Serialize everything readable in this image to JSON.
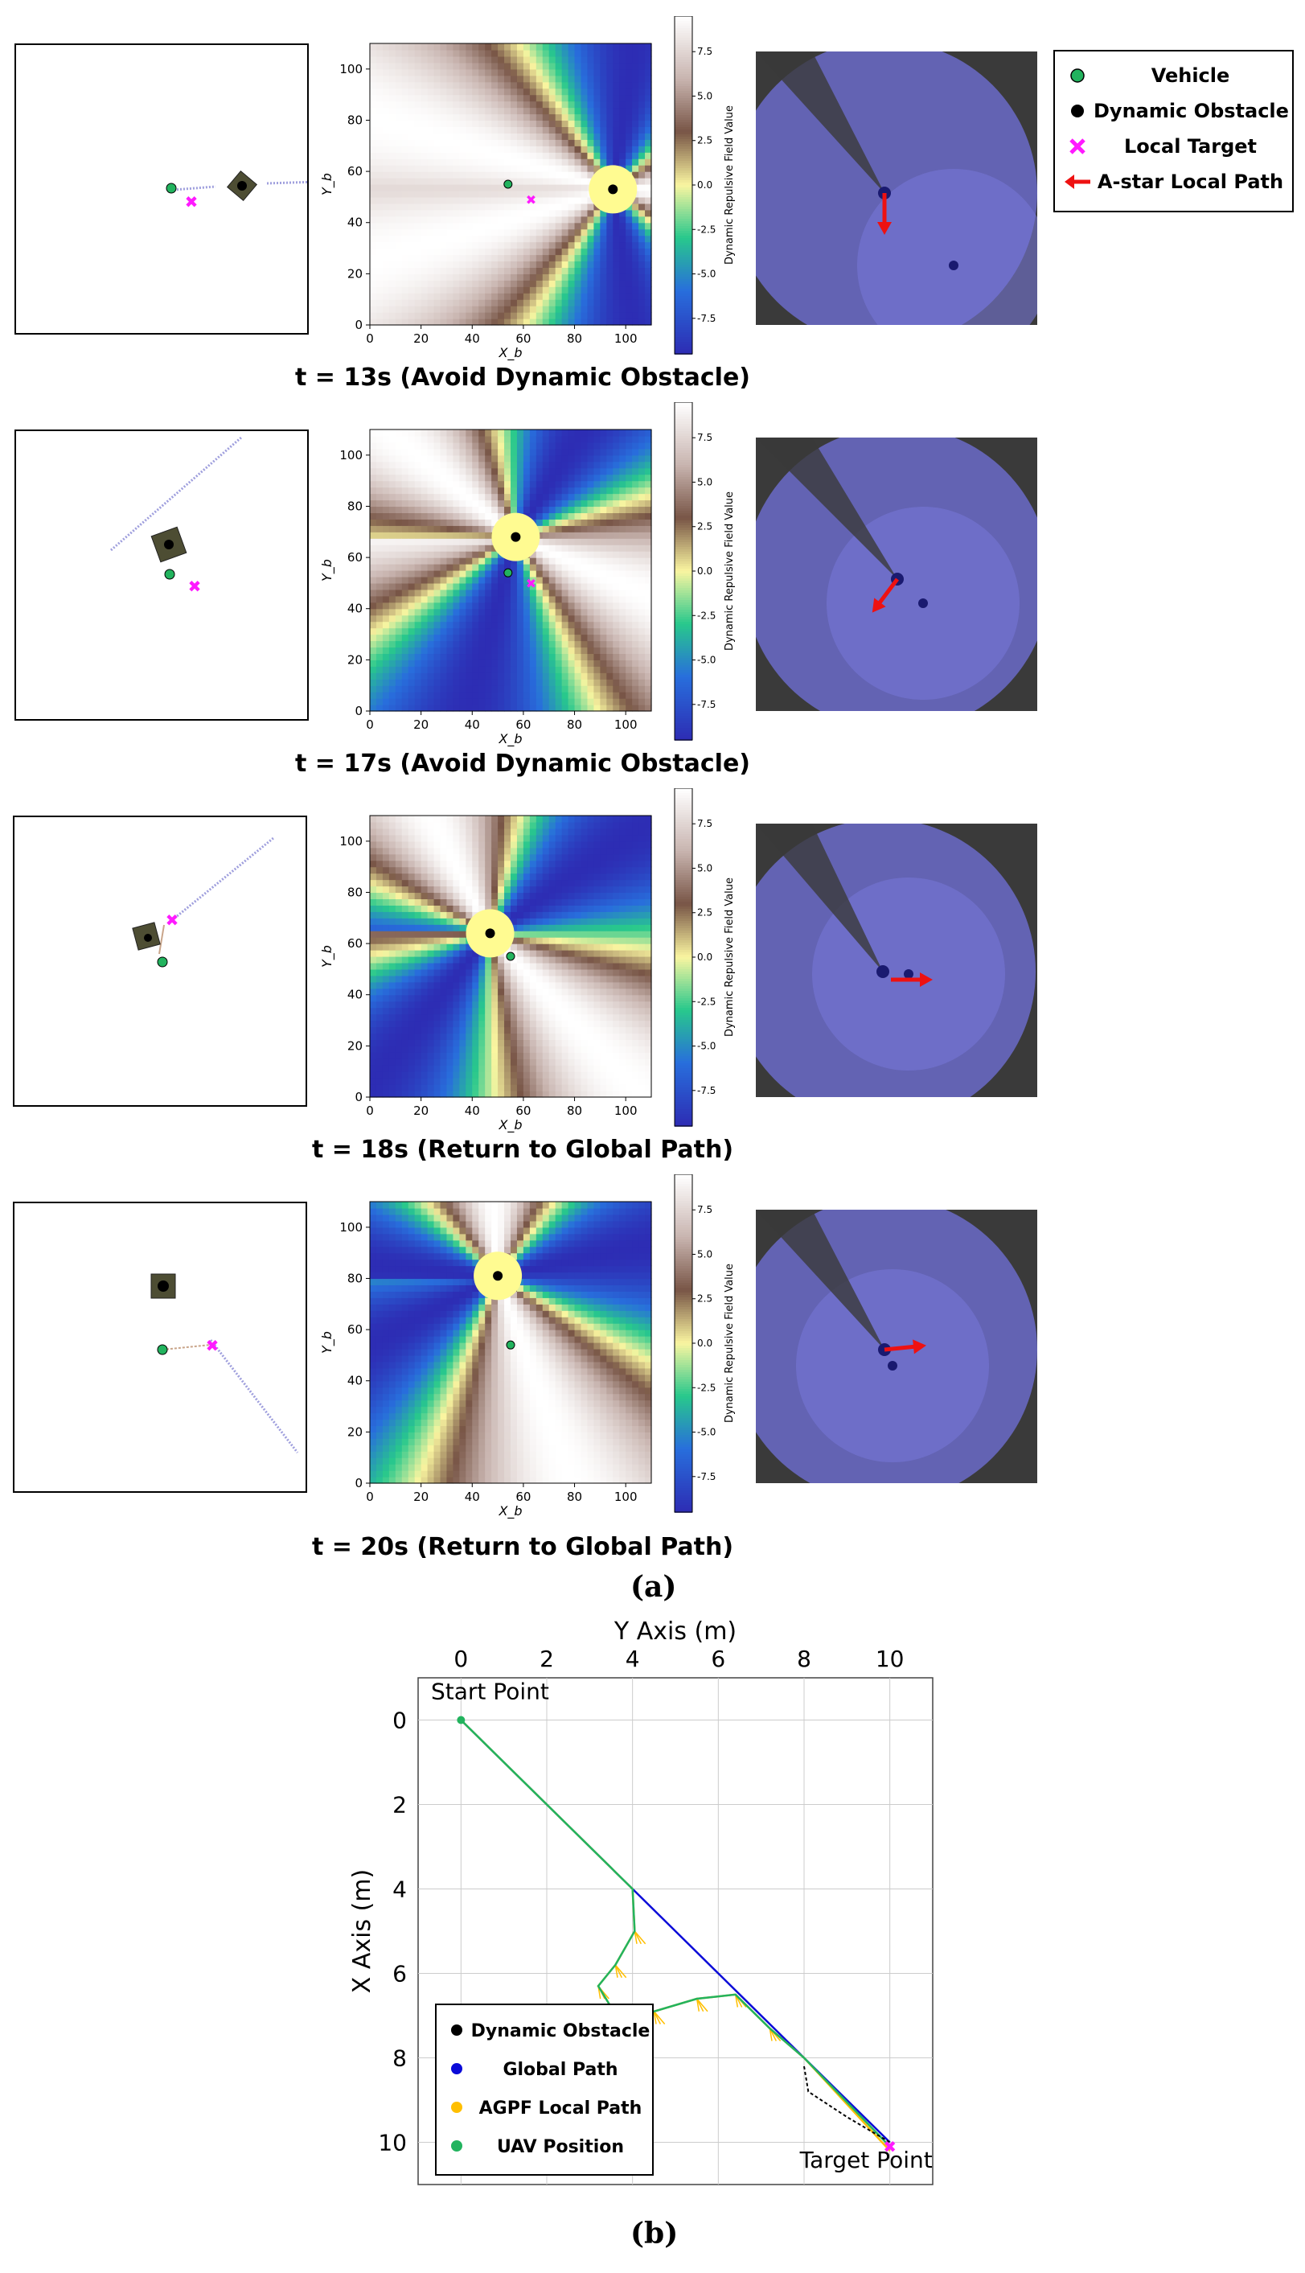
{
  "legend": {
    "items": [
      {
        "label": "Vehicle",
        "marker": "circle",
        "color": "#22b35e"
      },
      {
        "label": "Dynamic Obstacle",
        "marker": "circle",
        "color": "#000000"
      },
      {
        "label": "Local Target",
        "marker": "cross",
        "color": "#ff1aff"
      },
      {
        "label": "A-star Local Path",
        "marker": "arrow",
        "color": "#ee1111"
      }
    ]
  },
  "panels": [
    {
      "caption": "t = 13s (Avoid Dynamic Obstacle)",
      "t": 13,
      "vehicle": [
        54,
        55
      ],
      "obstacle": [
        95,
        53
      ],
      "target": [
        63,
        49
      ]
    },
    {
      "caption": "t = 17s (Avoid Dynamic Obstacle)",
      "t": 17,
      "vehicle": [
        54,
        54
      ],
      "obstacle": [
        57,
        68
      ],
      "target": [
        63,
        50
      ]
    },
    {
      "caption": "t = 18s (Return to Global Path)",
      "t": 18,
      "vehicle": [
        55,
        55
      ],
      "obstacle": [
        47,
        64
      ],
      "target": [
        55,
        55
      ]
    },
    {
      "caption": "t = 20s (Return to Global Path)",
      "t": 20,
      "vehicle": [
        55,
        54
      ],
      "obstacle": [
        50,
        81
      ],
      "target": [
        55,
        54
      ]
    }
  ],
  "heatmap_axes": {
    "x_label": "X_b",
    "y_label": "Y_b",
    "x_ticks": [
      "0",
      "20",
      "40",
      "60",
      "80",
      "100"
    ],
    "y_ticks": [
      "0",
      "20",
      "40",
      "60",
      "80",
      "100"
    ],
    "cbar_label": "Dynamic Repulsive Field Value",
    "cbar_ticks": [
      "7.5",
      "5.0",
      "2.5",
      "0.0",
      "-2.5",
      "-5.0",
      "-7.5"
    ]
  },
  "subfig_labels": {
    "a": "(a)",
    "b": "(b)"
  },
  "chart_data": [
    {
      "type": "heatmap",
      "title": "",
      "xlabel": "X_b",
      "ylabel": "Y_b",
      "xlim": [
        0,
        110
      ],
      "ylim": [
        0,
        110
      ],
      "colorbar": {
        "label": "Dynamic Repulsive Field Value",
        "range": [
          -9.5,
          9.5
        ]
      },
      "frames": [
        {
          "t": 13,
          "obstacle": [
            95,
            53
          ],
          "vehicle": [
            54,
            55
          ],
          "target": [
            63,
            49
          ]
        },
        {
          "t": 17,
          "obstacle": [
            57,
            68
          ],
          "vehicle": [
            54,
            54
          ],
          "target": [
            63,
            50
          ]
        },
        {
          "t": 18,
          "obstacle": [
            47,
            64
          ],
          "vehicle": [
            55,
            55
          ]
        },
        {
          "t": 20,
          "obstacle": [
            50,
            81
          ],
          "vehicle": [
            55,
            54
          ]
        }
      ]
    },
    {
      "type": "line",
      "xlabel": "Y Axis (m)",
      "ylabel": "X Axis (m)",
      "xlim": [
        -1,
        11
      ],
      "ylim": [
        11,
        -1
      ],
      "x_ticks": [
        "0",
        "2",
        "4",
        "6",
        "8",
        "10"
      ],
      "y_ticks": [
        "0",
        "2",
        "4",
        "6",
        "8",
        "10"
      ],
      "grid": true,
      "legend_position": "bottom-left",
      "annotations": [
        {
          "text": "Start Point",
          "at": [
            0,
            0
          ]
        },
        {
          "text": "Target Point",
          "at": [
            10,
            10
          ]
        }
      ],
      "series": [
        {
          "name": "Global Path",
          "color": "#0b0bd8",
          "points": [
            [
              0,
              0
            ],
            [
              4,
              4
            ],
            [
              8,
              8
            ],
            [
              10,
              10
            ]
          ]
        },
        {
          "name": "AGPF Local Path",
          "color": "#ffbf00",
          "points": [
            [
              0,
              0
            ],
            [
              4,
              4
            ],
            [
              4.05,
              5
            ],
            [
              3.6,
              5.8
            ],
            [
              3.2,
              6.3
            ],
            [
              3.5,
              6.8
            ],
            [
              4.5,
              6.9
            ],
            [
              5.5,
              6.6
            ],
            [
              6.4,
              6.5
            ],
            [
              7.2,
              7.3
            ],
            [
              8,
              8
            ],
            [
              10,
              10.2
            ]
          ]
        },
        {
          "name": "UAV Position",
          "color": "#22b35e",
          "points": [
            [
              0,
              0
            ],
            [
              4,
              4
            ],
            [
              4.05,
              5
            ],
            [
              3.6,
              5.8
            ],
            [
              3.2,
              6.3
            ],
            [
              3.5,
              6.8
            ],
            [
              4.5,
              6.9
            ],
            [
              5.5,
              6.6
            ],
            [
              6.4,
              6.5
            ],
            [
              7.2,
              7.3
            ],
            [
              8,
              8
            ],
            [
              10,
              10.1
            ]
          ]
        },
        {
          "name": "Dynamic Obstacle",
          "color": "#000000",
          "points": [
            [
              8,
              8.2
            ],
            [
              8.1,
              8.8
            ],
            [
              9,
              9.4
            ],
            [
              10,
              10
            ]
          ]
        }
      ]
    }
  ]
}
